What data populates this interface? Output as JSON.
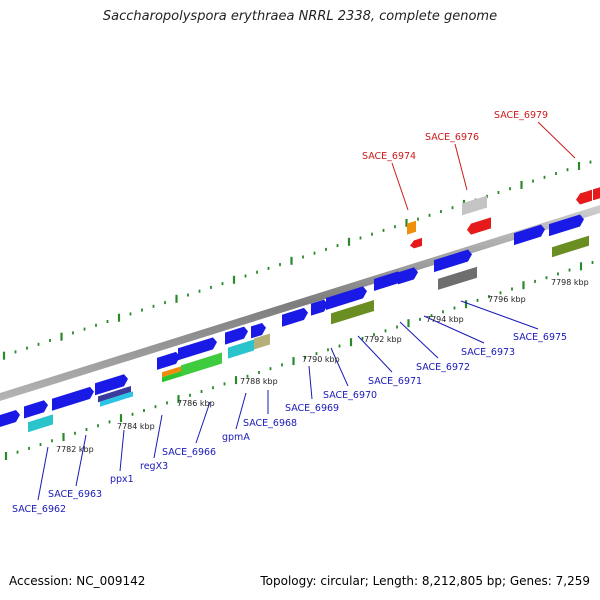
{
  "title": "Saccharopolyspora erythraea NRRL 2338, complete genome",
  "footer": {
    "accession": "Accession: NC_009142",
    "stats": "Topology: circular; Length: 8,212,805 bp; Genes: 7,259"
  },
  "scale_labels": [
    "7782 kbp",
    "7784 kbp",
    "7786 kbp",
    "7788 kbp",
    "7790 kbp",
    "7792 kbp",
    "7794 kbp",
    "7796 kbp",
    "7798 kbp"
  ],
  "gene_labels_bottom": [
    "SACE_6962",
    "SACE_6963",
    "ppx1",
    "regX3",
    "SACE_6966",
    "gpmA",
    "SACE_6968",
    "SACE_6969",
    "SACE_6970",
    "SACE_6971",
    "SACE_6972",
    "SACE_6973",
    "SACE_6975"
  ],
  "gene_labels_top": [
    "SACE_6974",
    "SACE_6976",
    "SACE_6979"
  ],
  "colors": {
    "forward_strand": "#1a1ae6",
    "reverse_strand": "#e61a1a",
    "label_forward": "#1a1ab8",
    "label_reverse": "#cc1a1a",
    "ticks": "#2a8a2a",
    "axis": "#8a8a8a"
  }
}
